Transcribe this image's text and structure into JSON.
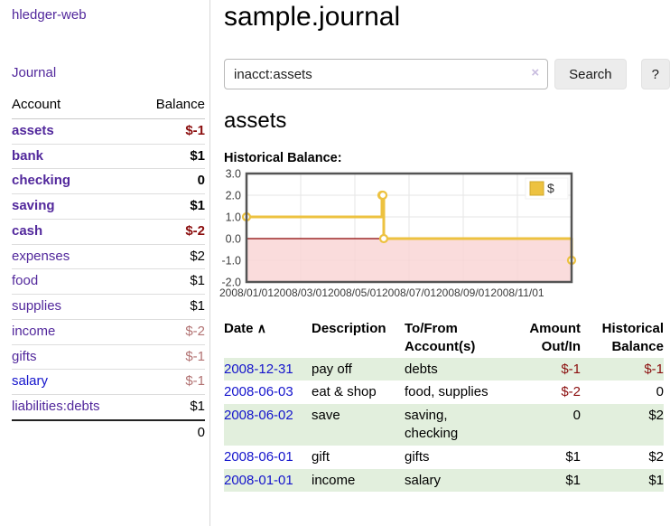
{
  "sidebar": {
    "brand": "hledger-web",
    "journal_label": "Journal",
    "accounts_table": {
      "headers": {
        "account": "Account",
        "balance": "Balance"
      },
      "rows": [
        {
          "name": "assets",
          "depth": 1,
          "bold": true,
          "link_style": "purple",
          "balance": "$-1",
          "balance_style": "neg-strong"
        },
        {
          "name": "bank",
          "depth": 2,
          "bold": true,
          "link_style": "purple",
          "balance": "$1",
          "balance_style": "plain"
        },
        {
          "name": "checking",
          "depth": 3,
          "bold": true,
          "link_style": "purple",
          "balance": "0",
          "balance_style": "plain"
        },
        {
          "name": "saving",
          "depth": 3,
          "bold": true,
          "link_style": "purple",
          "balance": "$1",
          "balance_style": "plain"
        },
        {
          "name": "cash",
          "depth": 2,
          "bold": true,
          "link_style": "purple",
          "balance": "$-2",
          "balance_style": "neg-strong"
        },
        {
          "name": "expenses",
          "depth": 1,
          "bold": false,
          "link_style": "purple",
          "balance": "$2",
          "balance_style": "plain"
        },
        {
          "name": "food",
          "depth": 2,
          "bold": false,
          "link_style": "purple",
          "balance": "$1",
          "balance_style": "plain"
        },
        {
          "name": "supplies",
          "depth": 2,
          "bold": false,
          "link_style": "purple",
          "balance": "$1",
          "balance_style": "plain"
        },
        {
          "name": "income",
          "depth": 1,
          "bold": false,
          "link_style": "purple",
          "balance": "$-2",
          "balance_style": "neg-faded"
        },
        {
          "name": "gifts",
          "depth": 2,
          "bold": false,
          "link_style": "purple",
          "balance": "$-1",
          "balance_style": "neg-faded"
        },
        {
          "name": "salary",
          "depth": 2,
          "bold": false,
          "link_style": "blue",
          "balance": "$-1",
          "balance_style": "neg-faded"
        },
        {
          "name": "liabilities:debts",
          "depth": 1,
          "bold": false,
          "link_style": "purple",
          "balance": "$1",
          "balance_style": "plain"
        }
      ],
      "total": "0"
    }
  },
  "header": {
    "title": "sample.journal"
  },
  "search": {
    "value": "inacct:assets",
    "clear_icon": "×",
    "button_label": "Search",
    "help_label": "?"
  },
  "account_page": {
    "heading": "assets",
    "chart_label": "Historical Balance:"
  },
  "chart_data": {
    "type": "line",
    "step": true,
    "title": "Historical Balance:",
    "series": [
      {
        "name": "$",
        "color": "#EDC240",
        "points": [
          [
            "2008-01-01",
            1
          ],
          [
            "2008-06-01",
            2
          ],
          [
            "2008-06-02",
            2
          ],
          [
            "2008-06-03",
            0
          ],
          [
            "2008-12-31",
            -1
          ]
        ]
      }
    ],
    "ylim": [
      -2,
      3
    ],
    "yticks": [
      "3.0",
      "2.0",
      "1.0",
      "0.0",
      "-1.0",
      "-2.0"
    ],
    "xticks": [
      "2008/01/01",
      "2008/03/01",
      "2008/05/01",
      "2008/07/01",
      "2008/09/01",
      "2008/11/01"
    ],
    "xrange": [
      "2008-01-01",
      "2008-12-31"
    ],
    "legend": {
      "position": "top-right",
      "label": "$"
    },
    "grid": true,
    "negative_region_color": "#f9d3d3",
    "zero_line_color": "#8b0000",
    "grid_color": "#e6e6e6",
    "border_color": "#545454"
  },
  "register_table": {
    "headers": {
      "date": "Date",
      "description": "Description",
      "accounts": "To/From Account(s)",
      "amount": "Amount Out/In",
      "balance": "Historical Balance"
    },
    "sort_icon": "∧",
    "rows": [
      {
        "date": "2008-12-31",
        "description": "pay off",
        "accounts": "debts",
        "amount": "$-1",
        "amount_negative": true,
        "balance": "$-1",
        "balance_negative": true,
        "shaded": true
      },
      {
        "date": "2008-06-03",
        "description": "eat & shop",
        "accounts": "food, supplies",
        "amount": "$-2",
        "amount_negative": true,
        "balance": "0",
        "balance_negative": false,
        "shaded": false
      },
      {
        "date": "2008-06-02",
        "description": "save",
        "accounts": "saving, checking",
        "amount": "0",
        "amount_negative": false,
        "balance": "$2",
        "balance_negative": false,
        "shaded": true
      },
      {
        "date": "2008-06-01",
        "description": "gift",
        "accounts": "gifts",
        "amount": "$1",
        "amount_negative": false,
        "balance": "$2",
        "balance_negative": false,
        "shaded": false
      },
      {
        "date": "2008-01-01",
        "description": "income",
        "accounts": "salary",
        "amount": "$1",
        "amount_negative": false,
        "balance": "$1",
        "balance_negative": false,
        "shaded": true
      }
    ]
  }
}
